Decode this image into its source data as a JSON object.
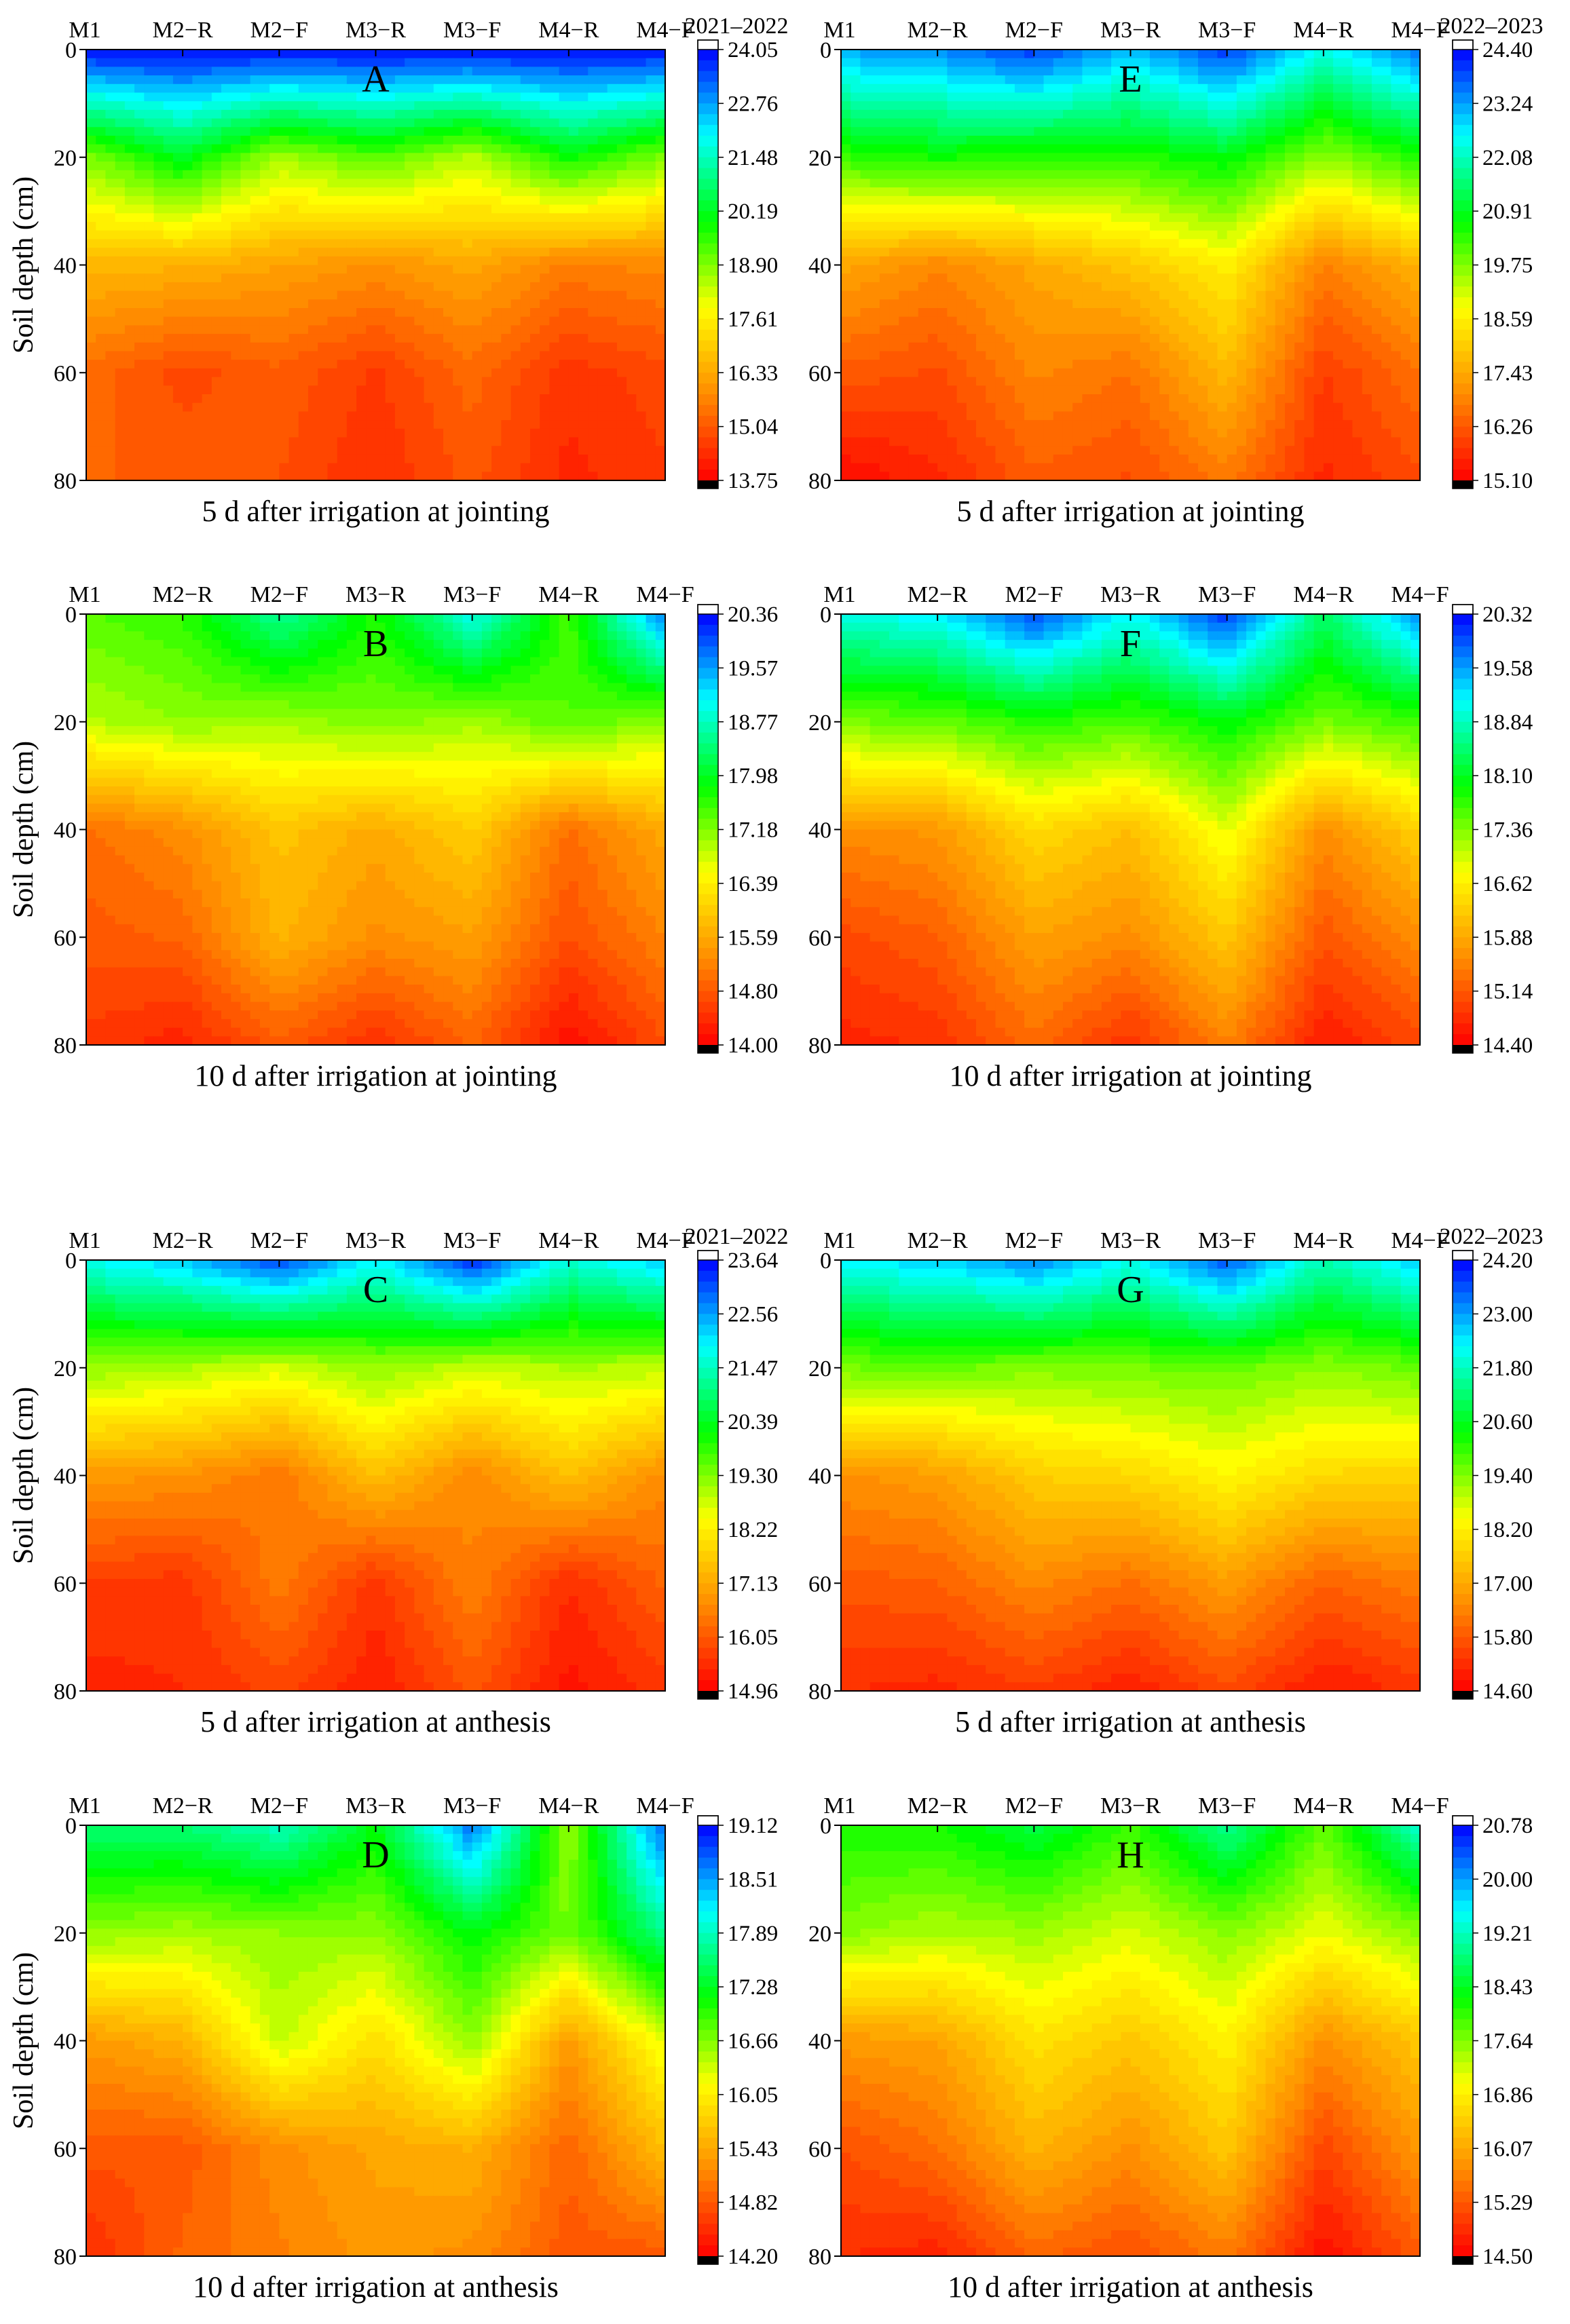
{
  "figure": {
    "description_labels": [
      "A",
      "B",
      "C",
      "D",
      "E",
      "F",
      "G",
      "H"
    ]
  },
  "colors": {
    "scale": [
      "#ff0000",
      "#ff8c00",
      "#ffff00",
      "#00ff00",
      "#00ffff",
      "#0000ff"
    ],
    "under": "#000000",
    "over": "#ffffff"
  },
  "chart_data": [
    {
      "type": "heatmap",
      "label": "A",
      "season": "2021–2022",
      "title": "5 d after irrigation at jointing",
      "ylabel": "Soil depth (cm)",
      "show_ylabel": true,
      "x": [
        "M1",
        "M2−R",
        "M2−F",
        "M3−R",
        "M3−F",
        "M4−R",
        "M4−F"
      ],
      "y": [
        0,
        20,
        40,
        60,
        80
      ],
      "y_ticks": [
        0,
        20,
        40,
        60,
        80
      ],
      "ylim": [
        0,
        80
      ],
      "vmin": 13.75,
      "vmax": 24.05,
      "colorbar_ticks": [
        24.05,
        22.76,
        21.48,
        20.19,
        18.9,
        17.61,
        16.33,
        15.04,
        13.75
      ],
      "z": [
        [
          24.0,
          24.0,
          24.0,
          24.0,
          24.0,
          24.0,
          24.0
        ],
        [
          18.9,
          20.2,
          18.6,
          19.3,
          18.4,
          19.9,
          18.9
        ],
        [
          16.6,
          16.5,
          16.2,
          15.9,
          16.3,
          15.6,
          15.8
        ],
        [
          15.3,
          14.8,
          15.1,
          14.6,
          15.3,
          14.5,
          14.8
        ],
        [
          15.2,
          15.1,
          14.9,
          14.4,
          15.0,
          14.3,
          14.6
        ]
      ]
    },
    {
      "type": "heatmap",
      "label": "B",
      "season": "",
      "title": "10 d after irrigation at jointing",
      "ylabel": "Soil depth (cm)",
      "show_ylabel": true,
      "x": [
        "M1",
        "M2−R",
        "M2−F",
        "M3−R",
        "M3−F",
        "M4−R",
        "M4−F"
      ],
      "y": [
        0,
        20,
        40,
        60,
        80
      ],
      "y_ticks": [
        0,
        20,
        40,
        60,
        80
      ],
      "ylim": [
        0,
        80
      ],
      "vmin": 14.0,
      "vmax": 20.36,
      "colorbar_ticks": [
        20.36,
        19.57,
        18.77,
        17.98,
        17.18,
        16.39,
        15.59,
        14.8,
        14.0
      ],
      "z": [
        [
          17.4,
          17.6,
          18.6,
          17.7,
          19.0,
          17.5,
          19.8
        ],
        [
          16.9,
          17.1,
          17.0,
          17.2,
          17.0,
          17.4,
          17.1
        ],
        [
          15.0,
          15.3,
          15.9,
          15.6,
          16.0,
          15.0,
          15.6
        ],
        [
          14.8,
          14.9,
          15.7,
          15.3,
          15.5,
          14.7,
          15.2
        ],
        [
          14.5,
          14.3,
          14.8,
          14.4,
          14.9,
          14.1,
          14.7
        ]
      ]
    },
    {
      "type": "heatmap",
      "label": "C",
      "season": "2021–2022",
      "title": "5 d after irrigation at anthesis",
      "ylabel": "Soil depth (cm)",
      "show_ylabel": true,
      "x": [
        "M1",
        "M2−R",
        "M2−F",
        "M3−R",
        "M3−F",
        "M4−R",
        "M4−F"
      ],
      "y": [
        0,
        20,
        40,
        60,
        80
      ],
      "y_ticks": [
        0,
        20,
        40,
        60,
        80
      ],
      "ylim": [
        0,
        80
      ],
      "vmin": 14.96,
      "vmax": 23.64,
      "colorbar_ticks": [
        23.64,
        22.56,
        21.47,
        20.39,
        19.3,
        18.22,
        17.13,
        16.05,
        14.96
      ],
      "z": [
        [
          21.8,
          22.3,
          23.2,
          21.9,
          23.4,
          21.6,
          22.3
        ],
        [
          19.2,
          19.0,
          18.7,
          19.2,
          18.8,
          19.0,
          18.9
        ],
        [
          16.9,
          16.8,
          16.4,
          17.5,
          16.6,
          17.5,
          16.7
        ],
        [
          15.7,
          15.6,
          16.5,
          15.6,
          16.6,
          15.5,
          16.2
        ],
        [
          15.4,
          15.5,
          15.8,
          15.3,
          16.0,
          15.2,
          15.6
        ]
      ]
    },
    {
      "type": "heatmap",
      "label": "D",
      "season": "",
      "title": "10 d after irrigation at anthesis",
      "ylabel": "Soil depth (cm)",
      "show_ylabel": true,
      "x": [
        "M1",
        "M2−R",
        "M2−F",
        "M3−R",
        "M3−F",
        "M4−R",
        "M4−F"
      ],
      "y": [
        0,
        20,
        40,
        60,
        80
      ],
      "y_ticks": [
        0,
        20,
        40,
        60,
        80
      ],
      "ylim": [
        0,
        80
      ],
      "vmin": 14.2,
      "vmax": 19.12,
      "colorbar_ticks": [
        19.12,
        18.51,
        17.89,
        17.28,
        16.66,
        16.05,
        15.43,
        14.82,
        14.2
      ],
      "z": [
        [
          17.6,
          17.6,
          17.9,
          17.2,
          18.7,
          16.6,
          18.8
        ],
        [
          16.6,
          16.5,
          16.6,
          16.6,
          17.2,
          16.7,
          17.7
        ],
        [
          15.3,
          15.5,
          16.4,
          15.9,
          16.6,
          15.3,
          16.3
        ],
        [
          14.8,
          14.8,
          15.2,
          15.4,
          15.5,
          14.9,
          15.6
        ],
        [
          14.5,
          14.9,
          15.1,
          15.3,
          15.2,
          14.8,
          14.8
        ]
      ]
    },
    {
      "type": "heatmap",
      "label": "E",
      "season": "2022–2023",
      "title": "5 d after irrigation at jointing",
      "ylabel": "",
      "show_ylabel": false,
      "x": [
        "M1",
        "M2−R",
        "M2−F",
        "M3−R",
        "M3−F",
        "M4−R",
        "M4−F"
      ],
      "y": [
        0,
        20,
        40,
        60,
        80
      ],
      "y_ticks": [
        0,
        20,
        40,
        60,
        80
      ],
      "ylim": [
        0,
        80
      ],
      "vmin": 15.1,
      "vmax": 24.4,
      "colorbar_ticks": [
        24.4,
        23.24,
        22.08,
        20.91,
        19.75,
        18.59,
        17.43,
        16.26,
        15.1
      ],
      "z": [
        [
          23.2,
          23.4,
          24.0,
          23.0,
          24.0,
          22.4,
          23.6
        ],
        [
          20.3,
          20.6,
          20.4,
          20.4,
          20.8,
          19.6,
          20.5
        ],
        [
          17.4,
          16.9,
          17.4,
          17.9,
          18.6,
          16.8,
          17.6
        ],
        [
          16.3,
          16.1,
          16.9,
          16.6,
          17.7,
          15.9,
          16.6
        ],
        [
          15.2,
          15.6,
          16.3,
          16.1,
          16.7,
          15.6,
          16.1
        ]
      ]
    },
    {
      "type": "heatmap",
      "label": "F",
      "season": "",
      "title": "10 d after irrigation at jointing",
      "ylabel": "",
      "show_ylabel": false,
      "x": [
        "M1",
        "M2−R",
        "M2−F",
        "M3−R",
        "M3−F",
        "M4−R",
        "M4−F"
      ],
      "y": [
        0,
        20,
        40,
        60,
        80
      ],
      "y_ticks": [
        0,
        20,
        40,
        60,
        80
      ],
      "ylim": [
        0,
        80
      ],
      "vmin": 14.4,
      "vmax": 20.32,
      "colorbar_ticks": [
        20.32,
        19.58,
        18.84,
        18.1,
        17.36,
        16.62,
        15.88,
        15.14,
        14.4
      ],
      "z": [
        [
          19.0,
          19.2,
          20.0,
          19.1,
          20.1,
          18.4,
          19.7
        ],
        [
          17.4,
          17.5,
          17.8,
          17.6,
          18.0,
          17.4,
          17.7
        ],
        [
          15.6,
          15.7,
          16.4,
          16.1,
          16.9,
          15.6,
          16.3
        ],
        [
          15.0,
          15.2,
          15.8,
          15.6,
          16.2,
          15.1,
          15.6
        ],
        [
          14.7,
          14.8,
          15.3,
          14.8,
          15.5,
          14.6,
          15.0
        ]
      ]
    },
    {
      "type": "heatmap",
      "label": "G",
      "season": "2022–2023",
      "title": "5 d after irrigation at anthesis",
      "ylabel": "",
      "show_ylabel": false,
      "x": [
        "M1",
        "M2−R",
        "M2−F",
        "M3−R",
        "M3−F",
        "M4−R",
        "M4−F"
      ],
      "y": [
        0,
        20,
        40,
        60,
        80
      ],
      "y_ticks": [
        0,
        20,
        40,
        60,
        80
      ],
      "ylim": [
        0,
        80
      ],
      "vmin": 14.6,
      "vmax": 24.2,
      "colorbar_ticks": [
        24.2,
        23.0,
        21.8,
        20.6,
        19.4,
        18.2,
        17.0,
        15.8,
        14.6
      ],
      "z": [
        [
          22.4,
          22.6,
          23.2,
          22.2,
          23.6,
          21.7,
          22.7
        ],
        [
          19.5,
          19.6,
          19.4,
          19.5,
          19.6,
          19.3,
          19.6
        ],
        [
          16.6,
          16.8,
          17.6,
          17.8,
          18.3,
          17.8,
          17.7
        ],
        [
          15.8,
          15.9,
          16.5,
          16.1,
          16.8,
          15.9,
          16.3
        ],
        [
          15.2,
          15.1,
          15.4,
          15.0,
          15.6,
          14.9,
          15.3
        ]
      ]
    },
    {
      "type": "heatmap",
      "label": "H",
      "season": "",
      "title": "10 d after irrigation at anthesis",
      "ylabel": "",
      "show_ylabel": false,
      "x": [
        "M1",
        "M2−R",
        "M2−F",
        "M3−R",
        "M3−F",
        "M4−R",
        "M4−F"
      ],
      "y": [
        0,
        20,
        40,
        60,
        80
      ],
      "y_ticks": [
        0,
        20,
        40,
        60,
        80
      ],
      "ylim": [
        0,
        80
      ],
      "vmin": 14.5,
      "vmax": 20.78,
      "colorbar_ticks": [
        20.78,
        20.0,
        19.21,
        18.43,
        17.64,
        16.86,
        16.07,
        15.29,
        14.5
      ],
      "z": [
        [
          18.2,
          18.2,
          18.6,
          18.0,
          19.0,
          17.8,
          19.3
        ],
        [
          17.6,
          17.4,
          17.5,
          17.2,
          17.6,
          17.1,
          17.6
        ],
        [
          15.9,
          16.0,
          16.7,
          16.4,
          16.9,
          15.8,
          16.4
        ],
        [
          15.2,
          15.5,
          16.2,
          15.8,
          16.4,
          15.1,
          15.9
        ],
        [
          14.9,
          14.8,
          15.4,
          15.2,
          15.6,
          14.6,
          15.3
        ]
      ]
    }
  ]
}
